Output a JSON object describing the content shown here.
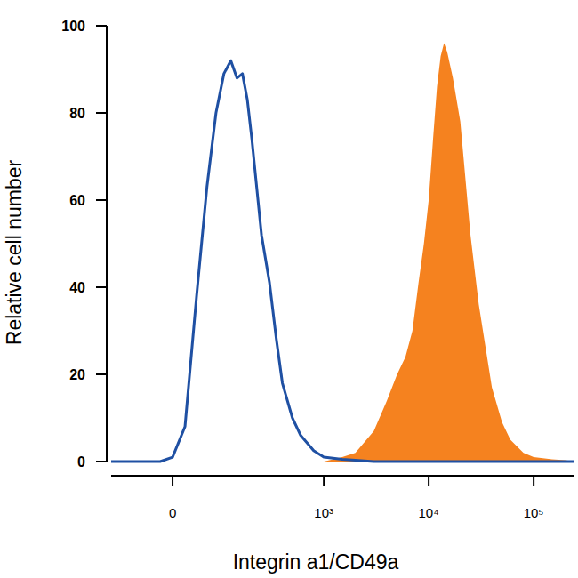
{
  "chart_data": {
    "type": "line",
    "x_label": "Integrin a1/CD49a",
    "y_label": "Relative cell number",
    "log": "x",
    "x": [
      -130,
      -20,
      0,
      20,
      40,
      60,
      80,
      100,
      120,
      140,
      160,
      180,
      200,
      250,
      300,
      350,
      400,
      500,
      600,
      800,
      1000,
      1500,
      2000,
      3000,
      4000,
      5000,
      6000,
      7000,
      8000,
      9000,
      10000,
      11000,
      12000,
      13000,
      14000,
      15000,
      17000,
      20000,
      25000,
      30000,
      40000,
      50000,
      60000,
      80000,
      100000,
      150000,
      200000,
      240000
    ],
    "series": [
      {
        "type": "line",
        "color": "#1f50a3",
        "values": [
          0,
          0,
          1,
          8,
          38,
          63,
          80,
          89,
          92,
          88,
          89,
          83,
          74,
          52,
          41,
          28,
          18,
          10,
          6,
          2.5,
          1,
          0.5,
          0.3,
          0,
          0,
          0,
          0,
          0,
          0,
          0,
          0,
          0,
          0,
          0,
          0,
          0,
          0,
          0,
          0,
          0,
          0,
          0,
          0,
          0,
          0,
          0,
          0,
          0
        ]
      },
      {
        "type": "area",
        "color": "#f5821f",
        "values": [
          0,
          0,
          0,
          0,
          0,
          0,
          0,
          0,
          0,
          0,
          0,
          0,
          0,
          0,
          0,
          0,
          0,
          0,
          0,
          0,
          0,
          1,
          2,
          7,
          14,
          20,
          24,
          30,
          41,
          50,
          60,
          74,
          86,
          93,
          96,
          94,
          88,
          78,
          52,
          36,
          17,
          9,
          5,
          2,
          1,
          0.5,
          0.3,
          0
        ]
      }
    ],
    "xlim": [
      -130,
      240000
    ],
    "xticks": [
      0,
      {
        "value": 1000,
        "label": "10³"
      },
      {
        "value": 10000,
        "label": "10⁴"
      },
      {
        "value": 100000,
        "label": "10⁵"
      }
    ],
    "ylim": [
      0,
      100
    ],
    "yticks": [
      0,
      20,
      40,
      60,
      80,
      100
    ]
  }
}
